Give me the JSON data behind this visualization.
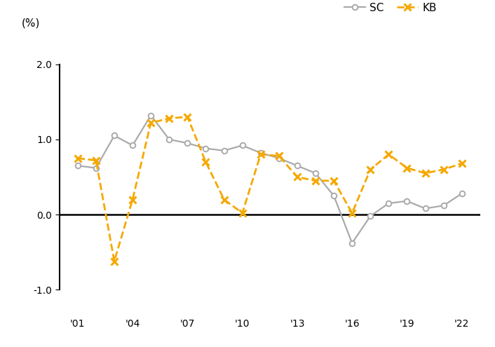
{
  "years": [
    2001,
    2002,
    2003,
    2004,
    2005,
    2006,
    2007,
    2008,
    2009,
    2010,
    2011,
    2012,
    2013,
    2014,
    2015,
    2016,
    2017,
    2018,
    2019,
    2020,
    2021,
    2022
  ],
  "SC": [
    0.65,
    0.62,
    1.05,
    0.92,
    1.32,
    1.0,
    0.95,
    0.88,
    0.85,
    0.92,
    0.82,
    0.75,
    0.65,
    0.55,
    0.25,
    -0.38,
    -0.02,
    0.15,
    0.18,
    0.08,
    0.12,
    0.28
  ],
  "KB": [
    0.75,
    0.72,
    -0.62,
    0.2,
    1.22,
    1.28,
    1.3,
    0.7,
    0.2,
    0.02,
    0.8,
    0.78,
    0.5,
    0.45,
    0.45,
    0.02,
    0.6,
    0.8,
    0.62,
    0.55,
    0.6,
    0.68
  ],
  "SC_color": "#aaaaaa",
  "KB_color": "#F5A800",
  "ylabel": "(%)",
  "ylim": [
    -1.3,
    2.3
  ],
  "yticks": [
    -1.0,
    0.0,
    1.0,
    2.0
  ],
  "xticks": [
    2001,
    2004,
    2007,
    2010,
    2013,
    2016,
    2019,
    2022
  ],
  "xtick_labels": [
    "'01",
    "'04",
    "'07",
    "'10",
    "'13",
    "'16",
    "'19",
    "'22"
  ]
}
